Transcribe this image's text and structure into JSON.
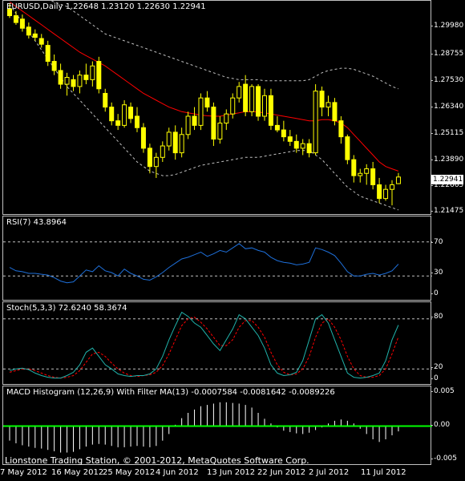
{
  "colors": {
    "background": "#000000",
    "frame": "#c0c0c0",
    "candle": "#ffff00",
    "moving_average": "#ff0000",
    "bands": "#c0c0c0",
    "rsi": "#1e6fd9",
    "stoch_main": "#20b2aa",
    "stoch_signal": "#ff0000",
    "macd_bars": "#ffffff",
    "macd_filter": "#00ff00",
    "guide_lines": "#c0c0c0"
  },
  "main": {
    "label": "EURUSD,Daily  1.22648 1.23120 1.22630 1.22941",
    "last_price": "1.22941",
    "ticks": [
      "1.29980",
      "1.28755",
      "1.27530",
      "1.26340",
      "1.25115",
      "1.23890",
      "1.22665",
      "1.21475"
    ],
    "ylim": [
      1.2125,
      1.3065
    ]
  },
  "rsi": {
    "label": "RSI(7) 43.8964",
    "ticks": [
      "70",
      "30",
      "0"
    ],
    "levels": [
      70,
      30
    ],
    "ylim": [
      0,
      100
    ]
  },
  "stoch": {
    "label": "Stoch(5,3,3) 72.6240 58.3674",
    "ticks": [
      "80",
      "20",
      "0"
    ],
    "levels": [
      80,
      20
    ],
    "ylim": [
      0,
      100
    ]
  },
  "macd": {
    "label": "MACD Histogram (12,26,9) With Filter MA(13) -0.0007584 -0.0081642 -0.0089226",
    "ticks": [
      "0.005",
      "0.00",
      "-0.005"
    ],
    "ylim": [
      -0.006,
      0.006
    ]
  },
  "copyright": "Lionstone Trading Station, © 2001-2012, MetaQuotes Software Corp.",
  "dates": [
    "7 May 2012",
    "16 May 2012",
    "25 May 2012",
    "4 Jun 2012",
    "13 Jun 2012",
    "22 Jun 2012",
    "2 Jul 2012",
    "11 Jul 2012"
  ],
  "chart_data": {
    "type": "line",
    "title": "EURUSD,Daily",
    "candles": [
      [
        1.303,
        1.305,
        1.299,
        1.3
      ],
      [
        1.3,
        1.302,
        1.296,
        1.297
      ],
      [
        1.2985,
        1.3005,
        1.293,
        1.2945
      ],
      [
        1.295,
        1.297,
        1.29,
        1.2915
      ],
      [
        1.292,
        1.294,
        1.289,
        1.2905
      ],
      [
        1.29,
        1.292,
        1.286,
        1.2875
      ],
      [
        1.287,
        1.289,
        1.278,
        1.28
      ],
      [
        1.28,
        1.283,
        1.274,
        1.276
      ],
      [
        1.276,
        1.279,
        1.268,
        1.27
      ],
      [
        1.27,
        1.275,
        1.265,
        1.273
      ],
      [
        1.272,
        1.274,
        1.267,
        1.269
      ],
      [
        1.269,
        1.276,
        1.266,
        1.274
      ],
      [
        1.274,
        1.279,
        1.27,
        1.272
      ],
      [
        1.272,
        1.28,
        1.269,
        1.278
      ],
      [
        1.28,
        1.282,
        1.266,
        1.268
      ],
      [
        1.266,
        1.268,
        1.258,
        1.26
      ],
      [
        1.26,
        1.262,
        1.252,
        1.254
      ],
      [
        1.254,
        1.257,
        1.25,
        1.252
      ],
      [
        1.252,
        1.263,
        1.251,
        1.261
      ],
      [
        1.26,
        1.262,
        1.253,
        1.255
      ],
      [
        1.256,
        1.26,
        1.249,
        1.251
      ],
      [
        1.251,
        1.253,
        1.24,
        1.242
      ],
      [
        1.242,
        1.244,
        1.231,
        1.234
      ],
      [
        1.234,
        1.24,
        1.229,
        1.238
      ],
      [
        1.238,
        1.245,
        1.236,
        1.243
      ],
      [
        1.243,
        1.251,
        1.241,
        1.249
      ],
      [
        1.249,
        1.252,
        1.237,
        1.24
      ],
      [
        1.24,
        1.251,
        1.238,
        1.248
      ],
      [
        1.248,
        1.258,
        1.246,
        1.256
      ],
      [
        1.256,
        1.26,
        1.25,
        1.252
      ],
      [
        1.252,
        1.266,
        1.25,
        1.264
      ],
      [
        1.264,
        1.267,
        1.258,
        1.26
      ],
      [
        1.26,
        1.262,
        1.243,
        1.246
      ],
      [
        1.246,
        1.256,
        1.244,
        1.253
      ],
      [
        1.253,
        1.259,
        1.25,
        1.257
      ],
      [
        1.257,
        1.266,
        1.255,
        1.264
      ],
      [
        1.264,
        1.271,
        1.262,
        1.269
      ],
      [
        1.27,
        1.274,
        1.256,
        1.258
      ],
      [
        1.258,
        1.27,
        1.256,
        1.269
      ],
      [
        1.269,
        1.27,
        1.254,
        1.256
      ],
      [
        1.256,
        1.268,
        1.254,
        1.265
      ],
      [
        1.265,
        1.268,
        1.25,
        1.252
      ],
      [
        1.252,
        1.256,
        1.249,
        1.25
      ],
      [
        1.25,
        1.254,
        1.245,
        1.247
      ],
      [
        1.247,
        1.25,
        1.243,
        1.245
      ],
      [
        1.245,
        1.248,
        1.24,
        1.242
      ],
      [
        1.242,
        1.246,
        1.239,
        1.244
      ],
      [
        1.244,
        1.246,
        1.238,
        1.24
      ],
      [
        1.24,
        1.27,
        1.239,
        1.267
      ],
      [
        1.267,
        1.269,
        1.256,
        1.26
      ],
      [
        1.26,
        1.265,
        1.256,
        1.262
      ],
      [
        1.262,
        1.264,
        1.252,
        1.254
      ],
      [
        1.254,
        1.256,
        1.244,
        1.247
      ],
      [
        1.247,
        1.248,
        1.235,
        1.237
      ],
      [
        1.237,
        1.239,
        1.227,
        1.23
      ],
      [
        1.23,
        1.233,
        1.227,
        1.231
      ],
      [
        1.231,
        1.235,
        1.226,
        1.233
      ],
      [
        1.233,
        1.236,
        1.224,
        1.226
      ],
      [
        1.226,
        1.229,
        1.218,
        1.22
      ],
      [
        1.22,
        1.226,
        1.219,
        1.224
      ],
      [
        1.224,
        1.228,
        1.217,
        1.226
      ],
      [
        1.2265,
        1.2312,
        1.2263,
        1.2294
      ]
    ],
    "moving_average": [
      1.306,
      1.304,
      1.302,
      1.3,
      1.298,
      1.296,
      1.294,
      1.292,
      1.29,
      1.288,
      1.286,
      1.284,
      1.2825,
      1.281,
      1.2795,
      1.278,
      1.276,
      1.274,
      1.272,
      1.27,
      1.268,
      1.266,
      1.2645,
      1.263,
      1.2615,
      1.26,
      1.259,
      1.258,
      1.2575,
      1.257,
      1.2565,
      1.2562,
      1.256,
      1.256,
      1.2565,
      1.257,
      1.2575,
      1.258,
      1.258,
      1.2578,
      1.2575,
      1.257,
      1.2565,
      1.256,
      1.2555,
      1.255,
      1.2545,
      1.254,
      1.254,
      1.2545,
      1.2545,
      1.254,
      1.253,
      1.251,
      1.248,
      1.245,
      1.242,
      1.239,
      1.236,
      1.234,
      1.233,
      1.232
    ],
    "upper_band": [
      1.31,
      1.31,
      1.31,
      1.3095,
      1.309,
      1.308,
      1.307,
      1.306,
      1.305,
      1.304,
      1.302,
      1.3,
      1.298,
      1.296,
      1.294,
      1.292,
      1.291,
      1.29,
      1.289,
      1.288,
      1.287,
      1.286,
      1.285,
      1.284,
      1.283,
      1.282,
      1.281,
      1.28,
      1.279,
      1.278,
      1.277,
      1.276,
      1.275,
      1.274,
      1.273,
      1.2725,
      1.272,
      1.272,
      1.272,
      1.272,
      1.2715,
      1.2715,
      1.2715,
      1.2715,
      1.2715,
      1.2715,
      1.2715,
      1.272,
      1.2735,
      1.275,
      1.276,
      1.2765,
      1.277,
      1.277,
      1.2765,
      1.2755,
      1.2745,
      1.2735,
      1.272,
      1.2705,
      1.269,
      1.268
    ],
    "lower_band": [
      1.305,
      1.301,
      1.297,
      1.293,
      1.289,
      1.285,
      1.281,
      1.277,
      1.273,
      1.269,
      1.266,
      1.263,
      1.26,
      1.257,
      1.254,
      1.251,
      1.248,
      1.245,
      1.242,
      1.239,
      1.236,
      1.234,
      1.232,
      1.231,
      1.23,
      1.23,
      1.2305,
      1.2315,
      1.2325,
      1.2335,
      1.2345,
      1.235,
      1.2355,
      1.236,
      1.2365,
      1.237,
      1.2375,
      1.238,
      1.238,
      1.238,
      1.2385,
      1.239,
      1.2395,
      1.24,
      1.2405,
      1.241,
      1.241,
      1.241,
      1.239,
      1.237,
      1.234,
      1.231,
      1.228,
      1.225,
      1.223,
      1.221,
      1.22,
      1.219,
      1.218,
      1.217,
      1.216,
      1.215
    ],
    "rsi": [
      40,
      36,
      35,
      33,
      33,
      32,
      31,
      28,
      24,
      22,
      23,
      30,
      37,
      35,
      42,
      36,
      34,
      30,
      38,
      33,
      30,
      26,
      25,
      29,
      34,
      40,
      45,
      50,
      52,
      55,
      58,
      53,
      56,
      60,
      58,
      63,
      68,
      62,
      63,
      60,
      58,
      52,
      48,
      46,
      45,
      43,
      44,
      46,
      63,
      61,
      58,
      54,
      45,
      35,
      30,
      30,
      32,
      33,
      31,
      33,
      36,
      43.9
    ],
    "stoch_main": [
      18,
      20,
      21,
      19,
      15,
      12,
      10,
      9,
      9,
      12,
      16,
      25,
      40,
      45,
      35,
      25,
      20,
      14,
      12,
      11,
      12,
      12,
      14,
      20,
      35,
      55,
      72,
      88,
      83,
      75,
      70,
      60,
      50,
      42,
      55,
      68,
      85,
      80,
      70,
      60,
      45,
      25,
      15,
      12,
      13,
      16,
      30,
      55,
      80,
      85,
      75,
      55,
      35,
      15,
      10,
      9,
      10,
      12,
      15,
      30,
      55,
      72.6
    ],
    "stoch_signal": [
      16,
      18,
      20,
      20,
      18,
      15,
      12,
      10,
      9,
      10,
      12,
      18,
      28,
      38,
      40,
      35,
      27,
      20,
      15,
      12,
      11,
      12,
      13,
      16,
      24,
      38,
      55,
      72,
      80,
      82,
      76,
      68,
      58,
      48,
      48,
      55,
      70,
      78,
      78,
      70,
      58,
      40,
      25,
      16,
      13,
      14,
      20,
      35,
      58,
      75,
      80,
      70,
      55,
      35,
      20,
      12,
      10,
      10,
      12,
      20,
      38,
      58.4
    ],
    "macd_hist": [
      -0.0022,
      -0.0026,
      -0.0029,
      -0.0031,
      -0.0033,
      -0.0034,
      -0.0036,
      -0.0038,
      -0.004,
      -0.004,
      -0.0039,
      -0.0035,
      -0.0031,
      -0.0028,
      -0.0027,
      -0.0028,
      -0.003,
      -0.0032,
      -0.0032,
      -0.0031,
      -0.003,
      -0.0031,
      -0.0032,
      -0.003,
      -0.0022,
      -0.0012,
      0.0002,
      0.0012,
      0.002,
      0.0025,
      0.003,
      0.0032,
      0.0034,
      0.0036,
      0.0036,
      0.0035,
      0.0034,
      0.0032,
      0.0028,
      0.002,
      0.0011,
      0.0004,
      -0.0002,
      -0.0007,
      -0.0009,
      -0.0011,
      -0.0012,
      -0.001,
      -0.0006,
      -0.0002,
      0.0004,
      0.0008,
      0.001,
      0.0008,
      0.0004,
      -0.0004,
      -0.0012,
      -0.002,
      -0.0024,
      -0.002,
      -0.0014,
      -0.0008
    ]
  }
}
